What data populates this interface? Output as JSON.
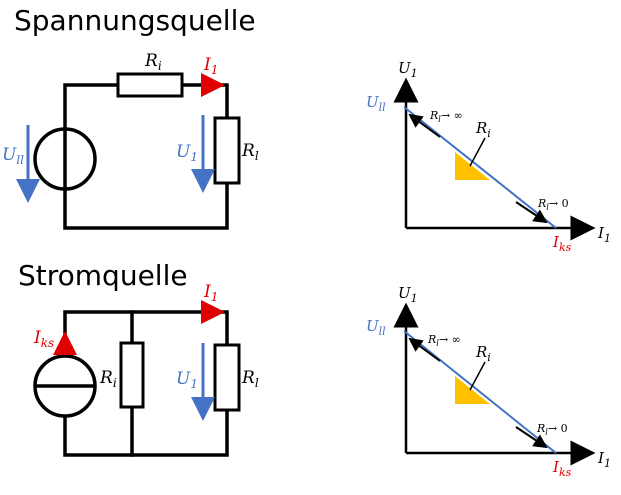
{
  "titles": {
    "top": "Spannungsquelle",
    "bottom": "Stromquelle"
  },
  "labels": {
    "Ri": "R",
    "Ri_sub": "i",
    "Rl": "R",
    "Rl_sub": "l",
    "I1": "I",
    "I1_sub": "1",
    "U1": "U",
    "U1_sub": "1",
    "Uq": "U",
    "Uq_sub": "ll",
    "Iks": "I",
    "Iks_sub": "ks",
    "arrow_inf": "→ ∞",
    "arrow_zero": "→ 0"
  },
  "chart_data": [
    {
      "type": "line",
      "title": "",
      "xlabel": "I1",
      "ylabel": "U1",
      "x_intercept_label": "Iks",
      "y_intercept_label": "Ull",
      "annotations": [
        "Rl → ∞",
        "Rl → 0",
        "Ri"
      ]
    },
    {
      "type": "line",
      "title": "",
      "xlabel": "I1",
      "ylabel": "U1",
      "x_intercept_label": "Iks",
      "y_intercept_label": "Ull",
      "annotations": [
        "Rl → ∞",
        "Rl → 0",
        "Ri"
      ]
    }
  ],
  "colors": {
    "blue": "#4472c4",
    "red": "#e00000",
    "triangle": "#ffc000"
  }
}
